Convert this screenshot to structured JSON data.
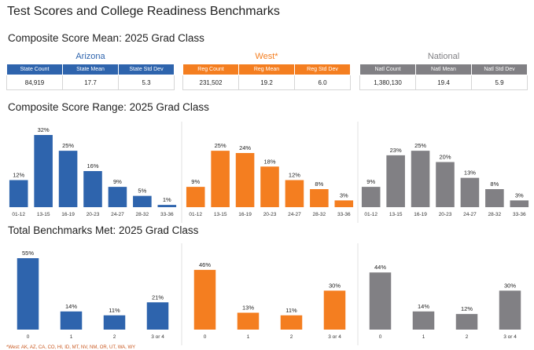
{
  "page_title": "Test Scores and College Readiness Benchmarks",
  "sections": {
    "mean": "Composite Score Mean: 2025 Grad Class",
    "range": "Composite Score Range: 2025 Grad Class",
    "benchmarks": "Total Benchmarks Met: 2025 Grad Class"
  },
  "colors": {
    "arizona": "#2e64ad",
    "west": "#f47e20",
    "national": "#818084"
  },
  "regions": [
    {
      "name": "Arizona",
      "headers": [
        "State Count",
        "State Mean",
        "State Std Dev"
      ],
      "values": [
        "84,919",
        "17.7",
        "5.3"
      ]
    },
    {
      "name": "West*",
      "headers": [
        "Reg Count",
        "Reg Mean",
        "Reg Std Dev"
      ],
      "values": [
        "231,502",
        "19.2",
        "6.0"
      ]
    },
    {
      "name": "National",
      "headers": [
        "Natl Count",
        "Natl Mean",
        "Natl Std Dev"
      ],
      "values": [
        "1,380,130",
        "19.4",
        "5.9"
      ]
    }
  ],
  "footnote": "*West: AK, AZ, CA, CO, HI, ID, MT, NV, NM, OR, UT, WA, WY",
  "chart_data": [
    {
      "type": "bar",
      "title": "Composite Score Range: 2025 Grad Class",
      "categories": [
        "01-12",
        "13-15",
        "16-19",
        "20-23",
        "24-27",
        "28-32",
        "33-36"
      ],
      "series": [
        {
          "name": "Arizona",
          "values": [
            12,
            32,
            25,
            16,
            9,
            5,
            1
          ]
        },
        {
          "name": "West*",
          "values": [
            9,
            25,
            24,
            18,
            12,
            8,
            3
          ]
        },
        {
          "name": "National",
          "values": [
            9,
            23,
            25,
            20,
            13,
            8,
            3
          ]
        }
      ],
      "unit": "%",
      "ylim": [
        0,
        32
      ]
    },
    {
      "type": "bar",
      "title": "Total Benchmarks Met: 2025 Grad Class",
      "categories": [
        "0",
        "1",
        "2",
        "3 or 4"
      ],
      "series": [
        {
          "name": "Arizona",
          "values": [
            55,
            14,
            11,
            21
          ]
        },
        {
          "name": "West*",
          "values": [
            46,
            13,
            11,
            30
          ]
        },
        {
          "name": "National",
          "values": [
            44,
            14,
            12,
            30
          ]
        }
      ],
      "unit": "%",
      "ylim": [
        0,
        55
      ]
    }
  ]
}
